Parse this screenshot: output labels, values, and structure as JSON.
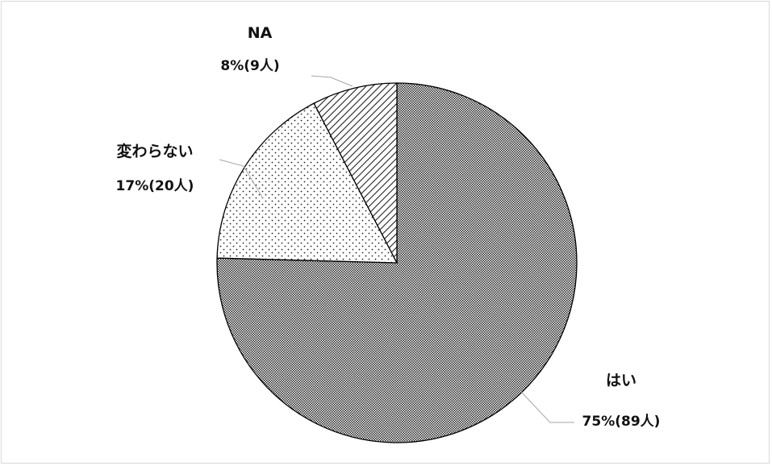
{
  "chart_data": {
    "type": "pie",
    "title": "",
    "slices": [
      {
        "name": "はい",
        "percent": 75,
        "count": 89,
        "value_label": "75%(89人)",
        "fill": "dense-dots"
      },
      {
        "name": "変わらない",
        "percent": 17,
        "count": 20,
        "value_label": "17%(20人)",
        "fill": "sparse-dots"
      },
      {
        "name": "NA",
        "percent": 8,
        "count": 9,
        "value_label": "8%(9人)",
        "fill": "diagonal-hatch"
      }
    ],
    "start": "12 o'clock",
    "direction": "clockwise",
    "legend": "none",
    "border_color": "#000000"
  }
}
